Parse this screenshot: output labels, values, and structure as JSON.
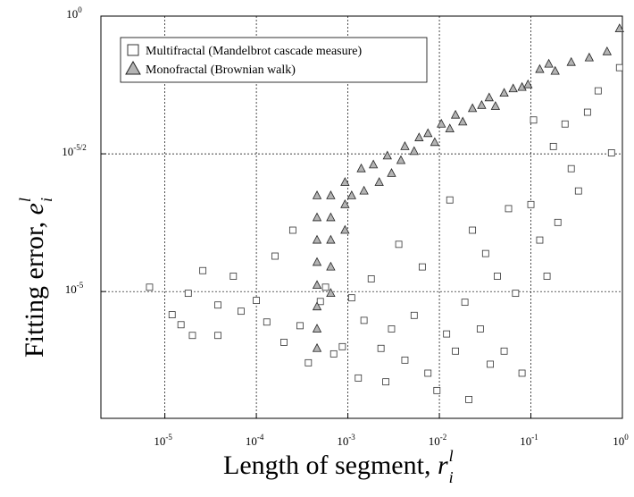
{
  "chart_data": {
    "type": "scatter",
    "xlabel": {
      "text": "Length of segment, ",
      "symbol": "r",
      "sup": "l",
      "sub": "i"
    },
    "ylabel": {
      "text": "Fitting error, ",
      "symbol": "e",
      "sup": "l",
      "sub": "i"
    },
    "xscale": "log",
    "yscale": "log",
    "grid": true,
    "legend": "upper left",
    "xlim": [
      2e-06,
      1
    ],
    "ylim": [
      5e-08,
      1
    ],
    "xticks": [
      {
        "value": 1e-05,
        "label": "10",
        "exponent": "-5"
      },
      {
        "value": 0.0001,
        "label": "10",
        "exponent": "-4"
      },
      {
        "value": 0.001,
        "label": "10",
        "exponent": "-3"
      },
      {
        "value": 0.01,
        "label": "10",
        "exponent": "-2"
      },
      {
        "value": 0.1,
        "label": "10",
        "exponent": "-1"
      },
      {
        "value": 1,
        "label": "10",
        "exponent": "0"
      }
    ],
    "yticks": [
      {
        "value": 1e-05,
        "label": "10",
        "exponent": "-5"
      },
      {
        "value": 0.0031623,
        "label": "10",
        "exponent": "-5/2"
      },
      {
        "value": 1,
        "label": "10",
        "exponent": "0"
      }
    ],
    "series": [
      {
        "name": "Multifractal (Mandelbrot cascade measure)",
        "marker": "square",
        "color": "#ffffff",
        "x": [
          6.8e-06,
          1.2e-05,
          1.8e-05,
          1.5e-05,
          2.6e-05,
          3.8e-05,
          2e-05,
          3.8e-05,
          5.6e-05,
          6.8e-05,
          0.0001,
          0.00013,
          0.00016,
          0.0002,
          0.00025,
          0.0003,
          0.00037,
          0.0005,
          0.00057,
          0.0007,
          0.00087,
          0.0011,
          0.0013,
          0.0015,
          0.0018,
          0.0023,
          0.0026,
          0.003,
          0.0036,
          0.0042,
          0.0053,
          0.0065,
          0.0075,
          0.0094,
          0.012,
          0.013,
          0.015,
          0.019,
          0.021,
          0.023,
          0.028,
          0.032,
          0.036,
          0.043,
          0.051,
          0.057,
          0.068,
          0.08,
          0.1,
          0.107,
          0.125,
          0.15,
          0.176,
          0.197,
          0.236,
          0.276,
          0.331,
          0.415,
          0.543,
          0.76,
          0.93
        ],
        "values": [
          1.2e-05,
          3.8e-06,
          9.3e-06,
          2.5e-06,
          2.4e-05,
          5.7e-06,
          1.6e-06,
          1.6e-06,
          1.9e-05,
          4.4e-06,
          6.9e-06,
          2.8e-06,
          4.4e-05,
          1.2e-06,
          0.00013,
          2.4e-06,
          5.1e-07,
          6.6e-06,
          1.2e-05,
          7.4e-07,
          1e-06,
          7.7e-06,
          2.7e-07,
          3e-06,
          1.7e-05,
          9.3e-07,
          2.3e-07,
          2.1e-06,
          7.2e-05,
          5.7e-07,
          3.7e-06,
          2.8e-05,
          3.3e-07,
          1.6e-07,
          1.7e-06,
          0.00046,
          8.3e-07,
          6.4e-06,
          1.1e-07,
          0.00013,
          2.1e-06,
          4.9e-05,
          4.8e-07,
          1.9e-05,
          8.3e-07,
          0.00032,
          9.3e-06,
          3.3e-07,
          0.00038,
          0.013,
          8.6e-05,
          1.9e-05,
          0.0043,
          0.00018,
          0.011,
          0.0017,
          0.00067,
          0.018,
          0.044,
          0.0033,
          0.116
        ]
      },
      {
        "name": "Monofractal (Brownian walk)",
        "marker": "triangle",
        "color": "#b4b4b4",
        "x": [
          0.00046,
          0.00046,
          0.00046,
          0.00046,
          0.00046,
          0.00046,
          0.00046,
          0.00046,
          0.00065,
          0.00065,
          0.00065,
          0.00065,
          0.00065,
          0.00093,
          0.00093,
          0.00093,
          0.0011,
          0.0014,
          0.0015,
          0.0019,
          0.0022,
          0.0027,
          0.003,
          0.0038,
          0.0042,
          0.0053,
          0.006,
          0.0075,
          0.0089,
          0.0105,
          0.013,
          0.015,
          0.018,
          0.023,
          0.029,
          0.035,
          0.041,
          0.051,
          0.064,
          0.08,
          0.093,
          0.125,
          0.157,
          0.184,
          0.276,
          0.434,
          0.68,
          0.93
        ],
        "values": [
          0.00055,
          0.00022,
          8.6e-05,
          3.4e-05,
          1.3e-05,
          5.3e-06,
          2.1e-06,
          9.3e-07,
          0.00055,
          0.00022,
          8.6e-05,
          2.8e-05,
          9.3e-06,
          0.00096,
          0.00038,
          0.00013,
          0.00055,
          0.0017,
          0.00067,
          0.002,
          0.00096,
          0.0029,
          0.0014,
          0.0024,
          0.0043,
          0.0035,
          0.0062,
          0.0074,
          0.0051,
          0.011,
          0.009,
          0.016,
          0.012,
          0.021,
          0.024,
          0.033,
          0.023,
          0.04,
          0.048,
          0.051,
          0.057,
          0.108,
          0.135,
          0.1,
          0.145,
          0.175,
          0.226,
          0.59
        ]
      }
    ]
  }
}
